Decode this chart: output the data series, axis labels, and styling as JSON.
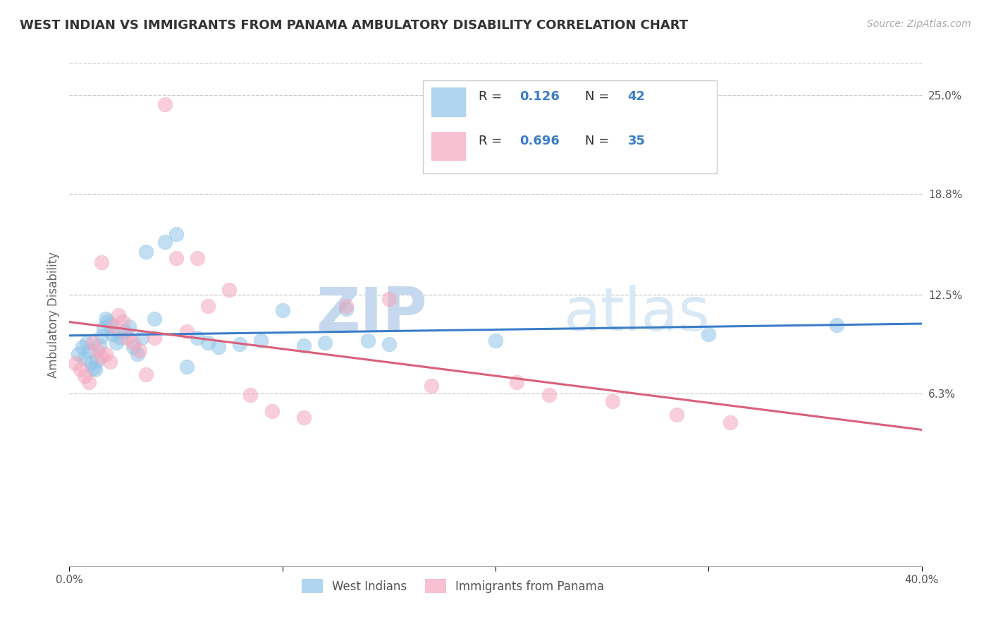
{
  "title": "WEST INDIAN VS IMMIGRANTS FROM PANAMA AMBULATORY DISABILITY CORRELATION CHART",
  "source": "Source: ZipAtlas.com",
  "ylabel": "Ambulatory Disability",
  "y_ticks": [
    0.063,
    0.125,
    0.188,
    0.25
  ],
  "y_tick_labels": [
    "6.3%",
    "12.5%",
    "18.8%",
    "25.0%"
  ],
  "x_min": 0.0,
  "x_max": 0.4,
  "y_min": -0.045,
  "y_max": 0.27,
  "blue_color": "#8fc4e8",
  "pink_color": "#f4a7be",
  "blue_line_color": "#3a7dc9",
  "pink_line_color": "#d9607a",
  "blue_R": 0.126,
  "blue_N": 42,
  "pink_R": 0.696,
  "pink_N": 35,
  "legend_label1": "West Indians",
  "legend_label2": "Immigrants from Panama",
  "watermark_zip": "ZIP",
  "watermark_atlas": "atlas",
  "blue_x": [
    0.004,
    0.006,
    0.007,
    0.008,
    0.009,
    0.01,
    0.011,
    0.012,
    0.013,
    0.014,
    0.015,
    0.016,
    0.017,
    0.018,
    0.019,
    0.02,
    0.022,
    0.024,
    0.026,
    0.028,
    0.03,
    0.032,
    0.034,
    0.036,
    0.04,
    0.045,
    0.05,
    0.055,
    0.06,
    0.065,
    0.07,
    0.08,
    0.09,
    0.1,
    0.11,
    0.12,
    0.13,
    0.14,
    0.15,
    0.2,
    0.3,
    0.36
  ],
  "blue_y": [
    0.088,
    0.092,
    0.085,
    0.095,
    0.09,
    0.082,
    0.079,
    0.078,
    0.084,
    0.093,
    0.099,
    0.104,
    0.11,
    0.108,
    0.106,
    0.1,
    0.095,
    0.098,
    0.102,
    0.105,
    0.092,
    0.088,
    0.098,
    0.152,
    0.11,
    0.158,
    0.163,
    0.08,
    0.098,
    0.095,
    0.092,
    0.094,
    0.096,
    0.115,
    0.093,
    0.095,
    0.116,
    0.096,
    0.094,
    0.096,
    0.1,
    0.106
  ],
  "pink_x": [
    0.003,
    0.005,
    0.007,
    0.009,
    0.011,
    0.013,
    0.015,
    0.017,
    0.019,
    0.021,
    0.023,
    0.025,
    0.027,
    0.03,
    0.033,
    0.036,
    0.04,
    0.045,
    0.05,
    0.055,
    0.06,
    0.065,
    0.075,
    0.085,
    0.095,
    0.11,
    0.13,
    0.15,
    0.17,
    0.21,
    0.225,
    0.255,
    0.285,
    0.31,
    0.015
  ],
  "pink_y": [
    0.082,
    0.078,
    0.074,
    0.07,
    0.095,
    0.09,
    0.086,
    0.088,
    0.083,
    0.105,
    0.112,
    0.108,
    0.098,
    0.095,
    0.09,
    0.075,
    0.098,
    0.244,
    0.148,
    0.102,
    0.148,
    0.118,
    0.128,
    0.062,
    0.052,
    0.048,
    0.118,
    0.122,
    0.068,
    0.07,
    0.062,
    0.058,
    0.05,
    0.045,
    0.145
  ]
}
